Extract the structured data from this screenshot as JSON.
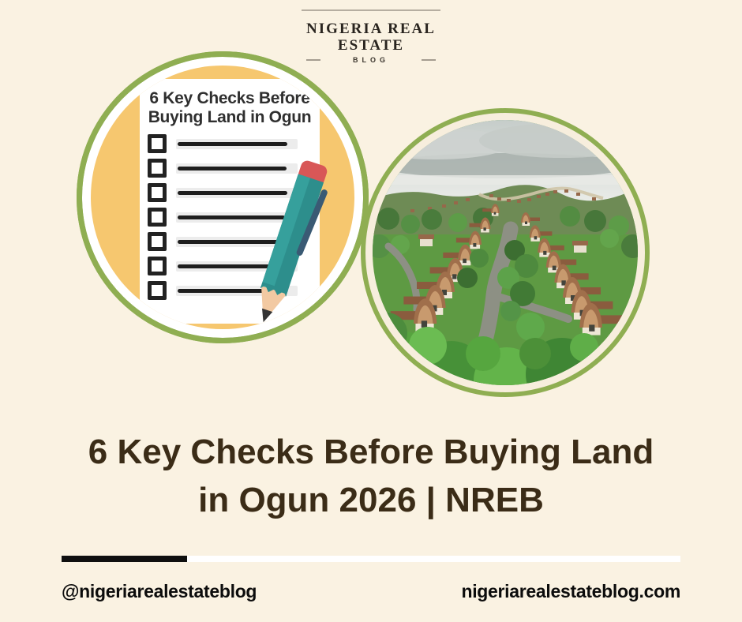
{
  "logo": {
    "line1": "NIGERIA REAL",
    "line2": "ESTATE",
    "subtitle": "BLOG"
  },
  "checklist_card": {
    "title_line1": "6 Key Checks Before",
    "title_line2": "Buying Land in Ogun",
    "item_line_widths": [
      139,
      138,
      139,
      136,
      133,
      130,
      137
    ]
  },
  "headline": {
    "line1": "6 Key Checks Before Buying Land",
    "line2": "in Ogun 2026 | NREB"
  },
  "photo": {
    "alt": "Aerial view of a residential estate with rows of brown arched roofs among dense green trees and a winding road"
  },
  "footer": {
    "handle": "@nigeriarealestateblog",
    "website": "nigeriarealestateblog.com"
  },
  "colors": {
    "background": "#faf2e2",
    "ring_green": "#8fae52",
    "circle_yellow": "#f6c76f",
    "headline_brown": "#3b2c17",
    "pencil_teal": "#2d8e8c",
    "eraser_red": "#d85757"
  }
}
